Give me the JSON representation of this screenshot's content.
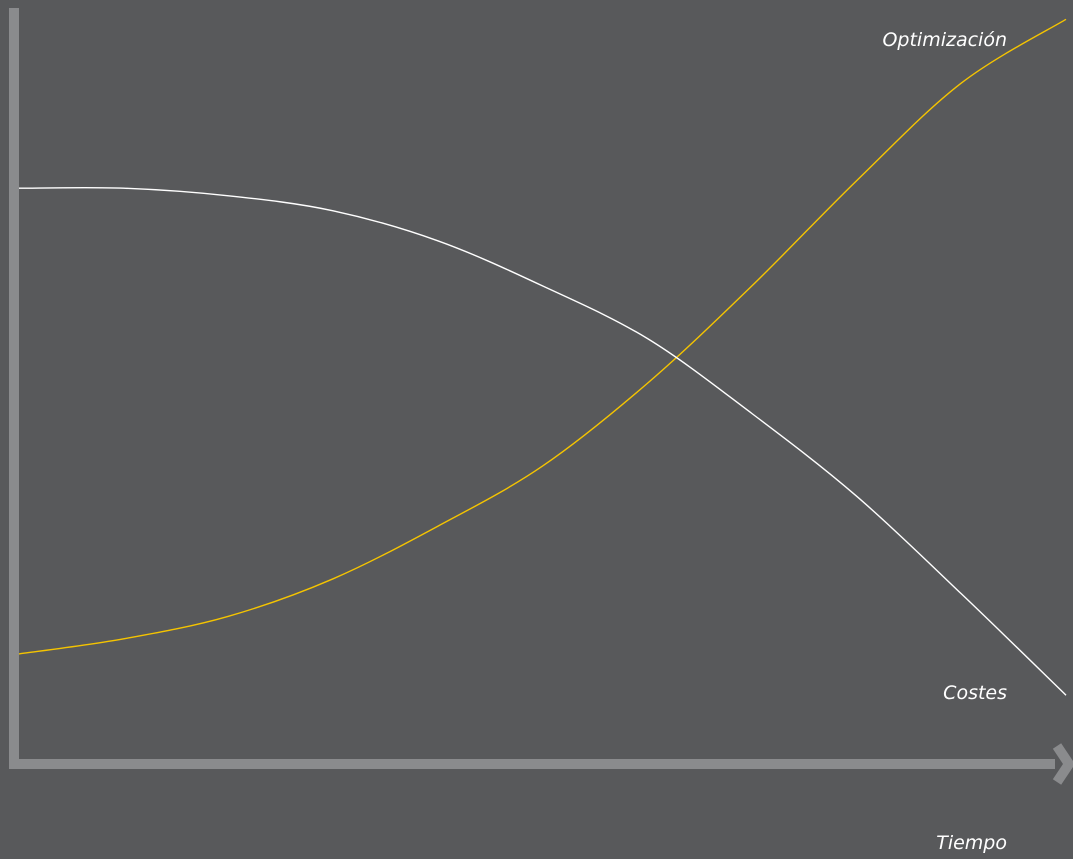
{
  "chart_data": {
    "type": "line",
    "xlabel": "Tiempo",
    "ylabel": "",
    "xlim": [
      0,
      10
    ],
    "ylim": [
      0,
      10
    ],
    "grid": false,
    "series": [
      {
        "name": "Optimización",
        "color": "#f5c400",
        "x": [
          0,
          1,
          2,
          3,
          4,
          5,
          6,
          7,
          8,
          9,
          10
        ],
        "y": [
          1.4,
          1.6,
          1.9,
          2.4,
          3.1,
          3.9,
          5.0,
          6.3,
          7.7,
          9.0,
          9.85
        ]
      },
      {
        "name": "Costes",
        "color": "#ffffff",
        "x": [
          0,
          1,
          2,
          3,
          4,
          5,
          6,
          7,
          8,
          9,
          10
        ],
        "y": [
          7.6,
          7.6,
          7.5,
          7.3,
          6.9,
          6.3,
          5.6,
          4.6,
          3.5,
          2.2,
          0.85
        ]
      }
    ]
  },
  "colors": {
    "background": "#58595b",
    "axis": "#8a8b8d"
  }
}
